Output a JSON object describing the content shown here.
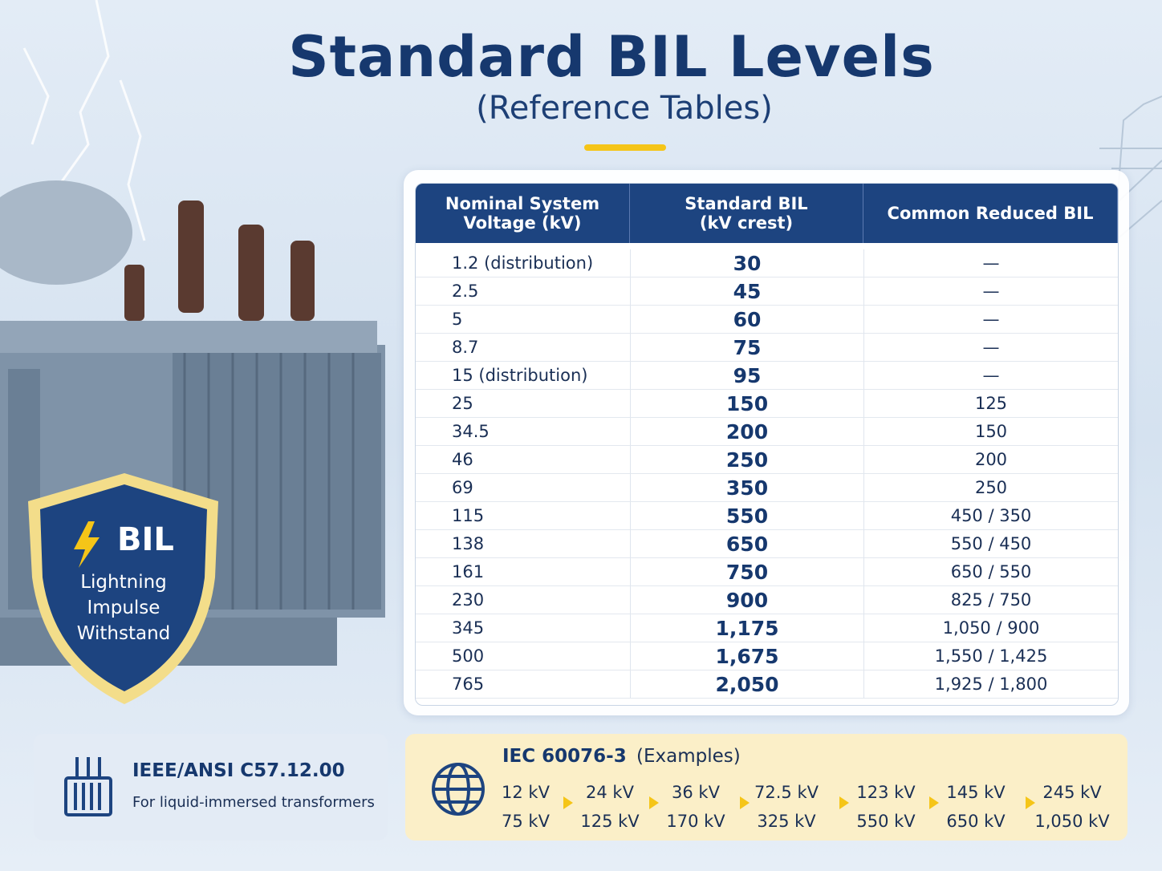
{
  "header": {
    "title": "Standard BIL Levels",
    "subtitle": "(Reference Tables)"
  },
  "badge": {
    "title": "BIL",
    "text": "Lightning Impulse Withstand"
  },
  "table": {
    "headers": [
      "Nominal System Voltage (kV)",
      "Standard BIL (kV crest)",
      "Common Reduced BIL"
    ],
    "rows": [
      [
        "1.2 (distribution)",
        "30",
        "—"
      ],
      [
        "2.5",
        "45",
        "—"
      ],
      [
        "5",
        "60",
        "—"
      ],
      [
        "8.7",
        "75",
        "—"
      ],
      [
        "15 (distribution)",
        "95",
        "—"
      ],
      [
        "25",
        "150",
        "125"
      ],
      [
        "34.5",
        "200",
        "150"
      ],
      [
        "46",
        "250",
        "200"
      ],
      [
        "69",
        "350",
        "250"
      ],
      [
        "115",
        "550",
        "450 / 350"
      ],
      [
        "138",
        "650",
        "550 / 450"
      ],
      [
        "161",
        "750",
        "650 / 550"
      ],
      [
        "230",
        "900",
        "825 / 750"
      ],
      [
        "345",
        "1,175",
        "1,050 / 900"
      ],
      [
        "500",
        "1,675",
        "1,550 / 1,425"
      ],
      [
        "765",
        "2,050",
        "1,925 / 1,800"
      ]
    ]
  },
  "ieee": {
    "title": "IEEE/ANSI C57.12.00",
    "subtitle": "For liquid-immersed transformers"
  },
  "iec": {
    "title": "IEC 60076-3",
    "note": "(Examples)",
    "pairs": [
      {
        "voltage": "12 kV",
        "bil": "75 kV"
      },
      {
        "voltage": "24 kV",
        "bil": "125 kV"
      },
      {
        "voltage": "36 kV",
        "bil": "170 kV"
      },
      {
        "voltage": "72.5 kV",
        "bil": "325 kV"
      },
      {
        "voltage": "123 kV",
        "bil": "550 kV"
      },
      {
        "voltage": "145 kV",
        "bil": "650 kV"
      },
      {
        "voltage": "245 kV",
        "bil": "1,050 kV"
      }
    ]
  }
}
